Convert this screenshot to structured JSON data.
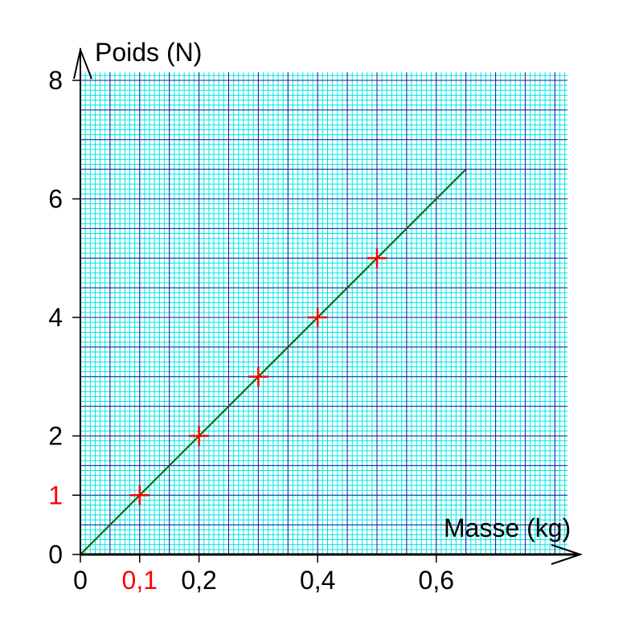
{
  "chart_data": {
    "type": "scatter",
    "xlabel": "Masse (kg)",
    "ylabel": "Poids (N)",
    "xlim": [
      0,
      0.8
    ],
    "ylim": [
      0,
      8
    ],
    "x_ticks": [
      {
        "value": 0,
        "label": "0",
        "color": "#000000"
      },
      {
        "value": 0.1,
        "label": "0,1",
        "color": "#ff0000"
      },
      {
        "value": 0.2,
        "label": "0,2",
        "color": "#000000"
      },
      {
        "value": 0.4,
        "label": "0,4",
        "color": "#000000"
      },
      {
        "value": 0.6,
        "label": "0,6",
        "color": "#000000"
      }
    ],
    "y_ticks": [
      {
        "value": 0,
        "label": "0",
        "color": "#000000"
      },
      {
        "value": 1,
        "label": "1",
        "color": "#ff0000"
      },
      {
        "value": 2,
        "label": "2",
        "color": "#000000"
      },
      {
        "value": 4,
        "label": "4",
        "color": "#000000"
      },
      {
        "value": 6,
        "label": "6",
        "color": "#000000"
      },
      {
        "value": 8,
        "label": "8",
        "color": "#000000"
      }
    ],
    "points": [
      {
        "x": 0.1,
        "y": 1
      },
      {
        "x": 0.2,
        "y": 2
      },
      {
        "x": 0.3,
        "y": 3
      },
      {
        "x": 0.4,
        "y": 4
      },
      {
        "x": 0.5,
        "y": 5
      }
    ],
    "fit_line": {
      "x": [
        0,
        0.65
      ],
      "y": [
        0,
        6.5
      ]
    },
    "grid": true,
    "colors": {
      "minor_grid": "#00e5e5",
      "major_grid": "#1a1aa6",
      "points": "#ff0000",
      "fit_line": "#006400",
      "background": "#ffffff"
    }
  }
}
